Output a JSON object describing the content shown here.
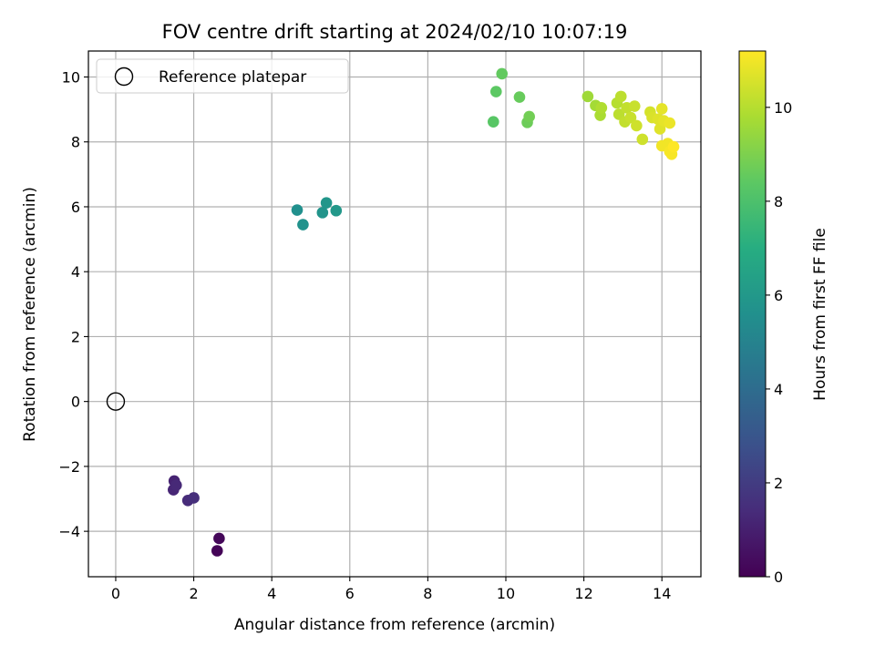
{
  "chart_data": {
    "type": "scatter",
    "title": "FOV centre drift starting at 2024/02/10 10:07:19",
    "xlabel": "Angular distance from reference (arcmin)",
    "ylabel": "Rotation from reference (arcmin)",
    "xlim": [
      -0.7,
      15
    ],
    "ylim": [
      -5.4,
      10.8
    ],
    "x_ticks": [
      0,
      2,
      4,
      6,
      8,
      10,
      12,
      14
    ],
    "y_ticks": [
      -4,
      -2,
      0,
      2,
      4,
      6,
      8,
      10
    ],
    "x_tick_labels": [
      "0",
      "2",
      "4",
      "6",
      "8",
      "10",
      "12",
      "14"
    ],
    "y_tick_labels": [
      "−4",
      "−2",
      "0",
      "2",
      "4",
      "6",
      "8",
      "10"
    ],
    "grid": true,
    "legend": {
      "placement": "top-left",
      "entries": [
        "Reference platepar"
      ]
    },
    "reference_point": {
      "x": 0,
      "y": 0,
      "label": "Reference platepar"
    },
    "colorbar": {
      "label": "Hours from first FF file",
      "colormap": "viridis",
      "range": [
        0,
        11.2
      ],
      "ticks": [
        0,
        2,
        4,
        6,
        8,
        10
      ],
      "tick_labels": [
        "0",
        "2",
        "4",
        "6",
        "8",
        "10"
      ]
    },
    "points": [
      {
        "x": 2.6,
        "y": -4.6,
        "hours": 0.1
      },
      {
        "x": 2.65,
        "y": -4.22,
        "hours": 0.2
      },
      {
        "x": 1.5,
        "y": -2.45,
        "hours": 1.1
      },
      {
        "x": 1.48,
        "y": -2.72,
        "hours": 1.2
      },
      {
        "x": 1.55,
        "y": -2.58,
        "hours": 1.3
      },
      {
        "x": 1.85,
        "y": -3.05,
        "hours": 1.4
      },
      {
        "x": 2.0,
        "y": -2.97,
        "hours": 1.5
      },
      {
        "x": 4.65,
        "y": 5.9,
        "hours": 5.6
      },
      {
        "x": 4.8,
        "y": 5.45,
        "hours": 5.7
      },
      {
        "x": 5.3,
        "y": 5.82,
        "hours": 5.8
      },
      {
        "x": 5.4,
        "y": 6.12,
        "hours": 5.9
      },
      {
        "x": 5.65,
        "y": 5.88,
        "hours": 6.0
      },
      {
        "x": 9.68,
        "y": 8.62,
        "hours": 8.3
      },
      {
        "x": 9.75,
        "y": 9.55,
        "hours": 8.4
      },
      {
        "x": 9.9,
        "y": 10.1,
        "hours": 8.5
      },
      {
        "x": 10.35,
        "y": 9.38,
        "hours": 8.6
      },
      {
        "x": 10.55,
        "y": 8.6,
        "hours": 8.7
      },
      {
        "x": 10.6,
        "y": 8.78,
        "hours": 8.8
      },
      {
        "x": 12.1,
        "y": 9.4,
        "hours": 9.6
      },
      {
        "x": 12.3,
        "y": 9.12,
        "hours": 9.7
      },
      {
        "x": 12.42,
        "y": 8.82,
        "hours": 9.8
      },
      {
        "x": 12.45,
        "y": 9.05,
        "hours": 9.9
      },
      {
        "x": 12.85,
        "y": 9.2,
        "hours": 10.0
      },
      {
        "x": 12.95,
        "y": 9.4,
        "hours": 10.1
      },
      {
        "x": 12.9,
        "y": 8.85,
        "hours": 10.1
      },
      {
        "x": 13.05,
        "y": 8.62,
        "hours": 10.2
      },
      {
        "x": 13.1,
        "y": 9.05,
        "hours": 10.2
      },
      {
        "x": 13.2,
        "y": 8.75,
        "hours": 10.3
      },
      {
        "x": 13.3,
        "y": 9.1,
        "hours": 10.3
      },
      {
        "x": 13.35,
        "y": 8.5,
        "hours": 10.4
      },
      {
        "x": 13.5,
        "y": 8.08,
        "hours": 10.4
      },
      {
        "x": 13.7,
        "y": 8.92,
        "hours": 10.5
      },
      {
        "x": 13.75,
        "y": 8.75,
        "hours": 10.6
      },
      {
        "x": 13.9,
        "y": 8.7,
        "hours": 10.7
      },
      {
        "x": 13.95,
        "y": 8.4,
        "hours": 10.7
      },
      {
        "x": 14.0,
        "y": 9.02,
        "hours": 10.8
      },
      {
        "x": 14.05,
        "y": 8.65,
        "hours": 10.8
      },
      {
        "x": 14.2,
        "y": 8.58,
        "hours": 10.9
      },
      {
        "x": 14.0,
        "y": 7.88,
        "hours": 11.0
      },
      {
        "x": 14.15,
        "y": 7.95,
        "hours": 11.0
      },
      {
        "x": 14.2,
        "y": 7.7,
        "hours": 11.1
      },
      {
        "x": 14.25,
        "y": 7.62,
        "hours": 11.1
      },
      {
        "x": 14.3,
        "y": 7.85,
        "hours": 11.2
      }
    ]
  }
}
